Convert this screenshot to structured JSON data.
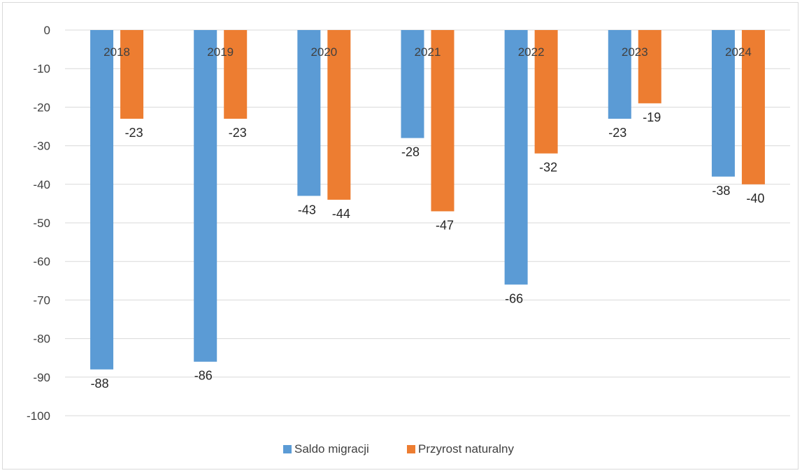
{
  "chart_data": {
    "type": "bar",
    "categories": [
      "2018",
      "2019",
      "2020",
      "2021",
      "2022",
      "2023",
      "2024"
    ],
    "series": [
      {
        "name": "Saldo migracji",
        "values": [
          -88,
          -86,
          -43,
          -28,
          -66,
          -23,
          -38
        ],
        "color": "#5b9bd5"
      },
      {
        "name": "Przyrost naturalny",
        "values": [
          -23,
          -23,
          -44,
          -47,
          -32,
          -19,
          -40
        ],
        "color": "#ed7d31"
      }
    ],
    "ylim": [
      -100,
      0
    ],
    "yticks": [
      0,
      -10,
      -20,
      -30,
      -40,
      -50,
      -60,
      -70,
      -80,
      -90,
      -100
    ],
    "grid": true,
    "legend": "bottom",
    "colors": {
      "grid": "#d9d9d9",
      "text": "#404040"
    }
  }
}
